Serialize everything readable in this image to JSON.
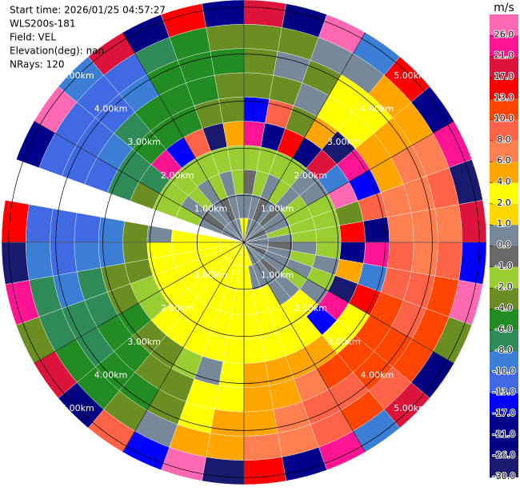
{
  "chart_data": {
    "type": "ppi",
    "info": [
      "Start time: 2026/01/25 04:57:27",
      "WLS200s-181",
      "Field: VEL",
      "Elevation(deg): nan",
      "NRays: 120"
    ],
    "rlim": [
      0,
      5.15
    ],
    "rticks": [
      {
        "value": 1,
        "label": "1.00km"
      },
      {
        "value": 2,
        "label": "2.00km"
      },
      {
        "value": 3,
        "label": "3.00km"
      },
      {
        "value": 4,
        "label": "4.00km"
      },
      {
        "value": 5,
        "label": "5.00km"
      }
    ],
    "values": [
      [
        3,
        0.5,
        -0.5,
        -1.5,
        22,
        -14,
        -3,
        -3,
        -3,
        18
      ],
      [
        0.5,
        0.5,
        -1.5,
        -1.5,
        -18,
        9,
        -3,
        0.5,
        -3,
        -24
      ],
      [
        0.5,
        -0.5,
        0.5,
        -1.5,
        14,
        -3,
        0.5,
        -3,
        0.5,
        27
      ],
      [
        0.5,
        0.5,
        -1.5,
        -1.5,
        -24,
        5,
        3,
        3,
        0.5,
        -9
      ],
      [
        0.5,
        -0.5,
        0.5,
        0.5,
        18,
        -28,
        3,
        3,
        5,
        14
      ],
      [
        0.5,
        0.5,
        -1.5,
        0.5,
        -9,
        22,
        5,
        5,
        5,
        -18
      ],
      [
        -0.5,
        0.5,
        -1.5,
        -1.5,
        27,
        -14,
        5,
        7,
        7,
        22
      ],
      [
        0.5,
        -1.5,
        -1.5,
        -1.5,
        -3,
        9,
        7,
        7,
        9,
        -28
      ],
      [
        0.5,
        0.5,
        -1.5,
        -1.5,
        14,
        -24,
        7,
        7,
        7,
        18
      ],
      [
        0.5,
        -0.5,
        0.5,
        -1.5,
        -18,
        22,
        9,
        7,
        9,
        -14
      ],
      [
        0.5,
        0.5,
        -1.5,
        0.5,
        5,
        -9,
        9,
        9,
        11,
        27
      ],
      [
        -0.5,
        0.5,
        0.5,
        -1.5,
        -28,
        14,
        11,
        9,
        11,
        -3
      ],
      [
        0.5,
        0.5,
        -1.5,
        0.5,
        22,
        3,
        11,
        11,
        11,
        -24
      ],
      [
        0.5,
        -0.5,
        0.5,
        3,
        -14,
        3,
        11,
        11,
        9,
        18
      ],
      [
        0.5,
        0.5,
        0.5,
        3,
        3,
        5,
        11,
        9,
        11,
        -9
      ],
      [
        0.5,
        0.5,
        3,
        3,
        3,
        5,
        7,
        9,
        9,
        22
      ],
      [
        3,
        0.5,
        3,
        3,
        3,
        5,
        5,
        7,
        7,
        -18
      ],
      [
        3,
        3,
        3,
        3,
        3,
        5,
        5,
        5,
        7,
        14
      ],
      [
        3,
        3,
        3,
        3,
        3,
        3,
        3,
        5,
        5,
        -28
      ],
      [
        3,
        3,
        3,
        3,
        3,
        0.5,
        3,
        3,
        5,
        27
      ],
      [
        3,
        3,
        3,
        3,
        3,
        -1.5,
        -3,
        -3,
        0.5,
        -14
      ],
      [
        3,
        3,
        3,
        3,
        3,
        -3,
        -3,
        -5,
        -3,
        9
      ],
      [
        3,
        3,
        3,
        3,
        3,
        -3,
        -5,
        -5,
        -5,
        -24
      ],
      [
        3,
        3,
        3,
        3,
        -1.5,
        -5,
        -5,
        -7,
        -5,
        18
      ],
      [
        3,
        3,
        3,
        3,
        -1.5,
        -3,
        -7,
        -7,
        -7,
        -3
      ],
      [
        3,
        3,
        3,
        3,
        -3,
        -3,
        -7,
        -9,
        -7,
        22
      ],
      [
        3,
        3,
        3,
        3,
        -3,
        -9,
        -9,
        -11,
        -9,
        -28
      ],
      [
        3,
        3,
        3,
        0.5,
        -3,
        -9,
        -11,
        -11,
        -11,
        14
      ],
      [
        null,
        null,
        null,
        null,
        null,
        null,
        null,
        null,
        null,
        null
      ],
      [
        0.5,
        0.5,
        -1.5,
        -1.5,
        -3,
        -7,
        -11,
        -11,
        -11,
        -18
      ],
      [
        0.5,
        -0.5,
        0.5,
        -1.5,
        -7,
        -7,
        -9,
        -11,
        -11,
        27
      ],
      [
        0.5,
        0.5,
        -1.5,
        -1.5,
        22,
        -5,
        -7,
        -11,
        -11,
        -9
      ],
      [
        0.5,
        0.5,
        0.5,
        -1.5,
        -14,
        -5,
        -5,
        -9,
        -11,
        18
      ],
      [
        0.5,
        -0.5,
        -1.5,
        -1.5,
        9,
        -5,
        -5,
        -5,
        -7,
        -24
      ],
      [
        0.5,
        0.5,
        0.5,
        -1.5,
        -28,
        -3,
        -5,
        -5,
        -5,
        14
      ],
      [
        3,
        0.5,
        -1.5,
        -1.5,
        5,
        -3,
        -3,
        -5,
        -3,
        -18
      ]
    ],
    "colorbar": {
      "label": "m/s",
      "ticks": [
        {
          "value": -30,
          "label": "-30.0"
        },
        {
          "value": -26,
          "label": "-26.0"
        },
        {
          "value": -21,
          "label": "-21.0"
        },
        {
          "value": -17,
          "label": "-17.0"
        },
        {
          "value": -13,
          "label": "-13.0"
        },
        {
          "value": -10,
          "label": "-10.0"
        },
        {
          "value": -8,
          "label": "-8.0"
        },
        {
          "value": -6,
          "label": "-6.0"
        },
        {
          "value": -4,
          "label": "-4.0"
        },
        {
          "value": -2,
          "label": "-2.0"
        },
        {
          "value": -1,
          "label": "-1.0"
        },
        {
          "value": 0,
          "label": "0.0"
        },
        {
          "value": 1,
          "label": "1.0"
        },
        {
          "value": 2,
          "label": "2.0"
        },
        {
          "value": 4,
          "label": "4.0"
        },
        {
          "value": 6,
          "label": "6.0"
        },
        {
          "value": 8,
          "label": "8.0"
        },
        {
          "value": 10,
          "label": "10.0"
        },
        {
          "value": 13,
          "label": "13.0"
        },
        {
          "value": 17,
          "label": "17.0"
        },
        {
          "value": 21,
          "label": "21.0"
        },
        {
          "value": 26,
          "label": "26.0"
        }
      ],
      "colors": [
        "#191970",
        "#000080",
        "#00008b",
        "#0000ff",
        "#4169e1",
        "#3a7fd5",
        "#2e8b57",
        "#228b22",
        "#6b8e23",
        "#9acd32",
        "#696969",
        "#778899",
        "#ffd700",
        "#ffff00",
        "#ffa500",
        "#ff7f50",
        "#ff6347",
        "#ff4500",
        "#ff0000",
        "#dc143c",
        "#ff1493",
        "#ff69b4"
      ]
    }
  }
}
